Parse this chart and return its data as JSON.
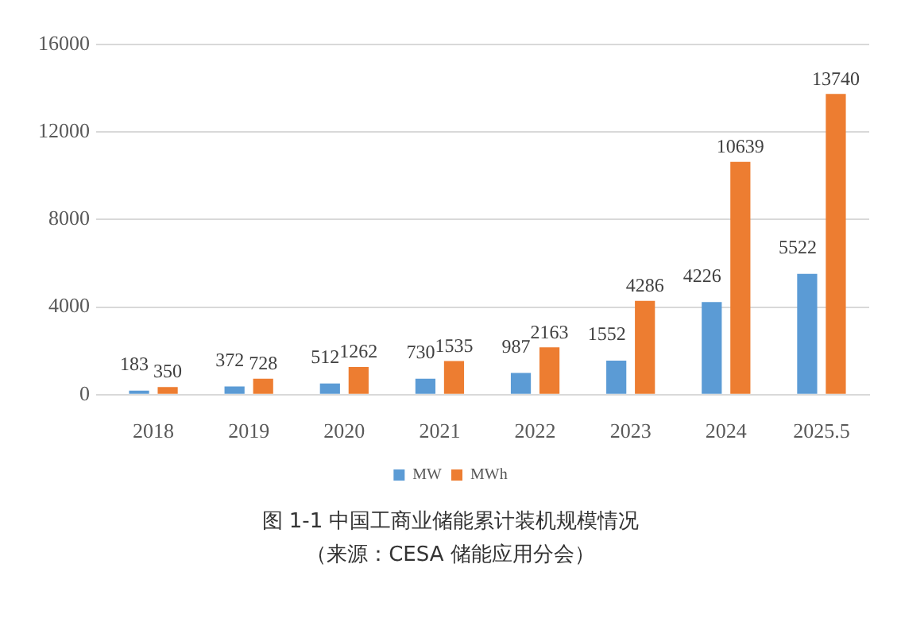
{
  "chart_data": {
    "type": "bar",
    "categories": [
      "2018",
      "2019",
      "2020",
      "2021",
      "2022",
      "2023",
      "2024",
      "2025.5"
    ],
    "series": [
      {
        "name": "MW",
        "color": "#5b9bd5",
        "values": [
          183,
          372,
          512,
          730,
          987,
          1552,
          4226,
          5522
        ]
      },
      {
        "name": "MWh",
        "color": "#ed7d31",
        "values": [
          350,
          728,
          1262,
          1535,
          2163,
          4286,
          10639,
          13740
        ]
      }
    ],
    "ylim": [
      0,
      16000
    ],
    "yticks": [
      0,
      4000,
      8000,
      12000,
      16000
    ],
    "grid": "y",
    "legend": "bottom",
    "data_labels": true,
    "annotations": [
      "图 1-1 中国工商业储能累计装机规模情况",
      "（来源：CESA 储能应用分会）"
    ]
  }
}
